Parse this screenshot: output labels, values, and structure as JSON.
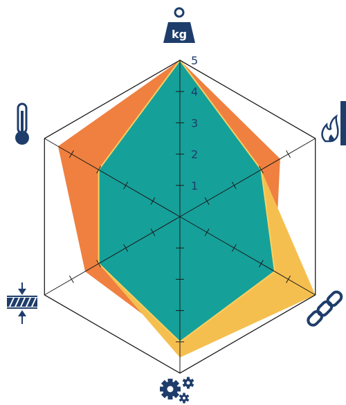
{
  "chart_data": {
    "type": "radar",
    "scale": {
      "min": 0,
      "max": 5,
      "tick_labels": [
        "1",
        "2",
        "3",
        "4",
        "5"
      ]
    },
    "axes": [
      {
        "icon": "weight-kg-icon",
        "label": "kg"
      },
      {
        "icon": "fire-resistance-icon",
        "label": ""
      },
      {
        "icon": "chain-link-icon",
        "label": ""
      },
      {
        "icon": "gears-icon",
        "label": ""
      },
      {
        "icon": "compression-icon",
        "label": ""
      },
      {
        "icon": "thermometer-icon",
        "label": ""
      }
    ],
    "series": [
      {
        "color": "#ef8040",
        "values": [
          5,
          3.7,
          3.5,
          4,
          3.5,
          4.5
        ]
      },
      {
        "color": "#f5bf50",
        "values": [
          4,
          3,
          5,
          4.5,
          3,
          3
        ]
      },
      {
        "color": "#16a09a",
        "values": [
          5,
          3,
          3.5,
          4,
          3,
          3
        ]
      }
    ],
    "series_order_note": ""
  },
  "colors": {
    "grid": "#1a1a1a",
    "icon": "#1e3d6b",
    "teal_outline": "#f7d060"
  }
}
